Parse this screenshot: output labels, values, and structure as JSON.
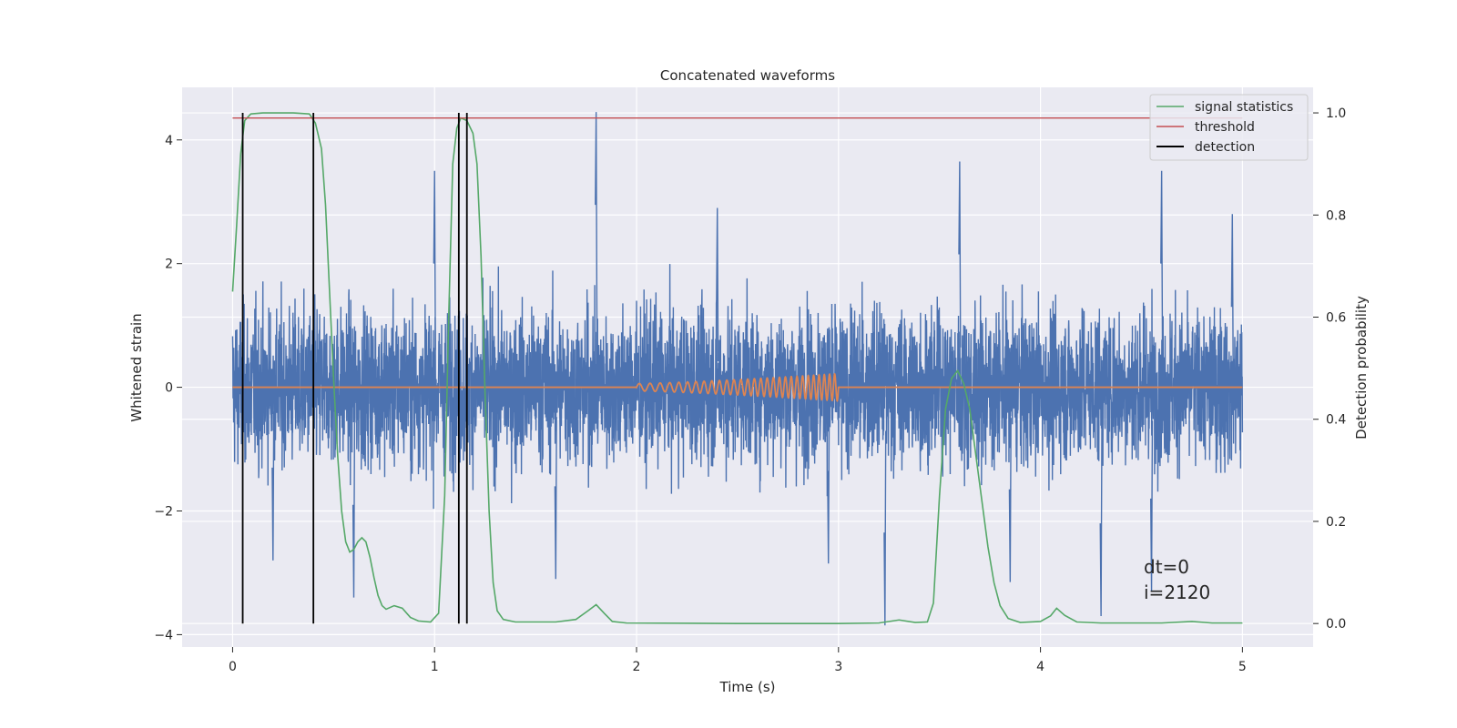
{
  "chart_data": {
    "type": "line",
    "title": "Concatenated waveforms",
    "xlabel": "Time (s)",
    "ylabel": "Whitened strain",
    "ylabel_right": "Detection probability",
    "xlim": [
      -0.25,
      5.35
    ],
    "ylim": [
      -4.2,
      4.85
    ],
    "ylim_right": [
      -0.046,
      1.05
    ],
    "x_ticks": [
      0,
      1,
      2,
      3,
      4,
      5
    ],
    "x_tick_labels": [
      "0",
      "1",
      "2",
      "3",
      "4",
      "5"
    ],
    "y_ticks": [
      -4,
      -2,
      0,
      2,
      4
    ],
    "y_tick_labels": [
      "−4",
      "−2",
      "0",
      "2",
      "4"
    ],
    "y_right_ticks": [
      0.0,
      0.2,
      0.4,
      0.6,
      0.8,
      1.0
    ],
    "y_right_tick_labels": [
      "0.0",
      "0.2",
      "0.4",
      "0.6",
      "0.8",
      "1.0"
    ],
    "grid": true,
    "legend_position": "top-right",
    "legend": [
      {
        "name": "signal statistics",
        "color": "#55a868"
      },
      {
        "name": "threshold",
        "color": "#c44e52"
      },
      {
        "name": "detection",
        "color": "#000000"
      }
    ],
    "noise": {
      "color": "#4c72b0",
      "x_range": [
        0,
        5
      ],
      "typical_range": [
        -2.3,
        2.3
      ],
      "peaks": [
        {
          "x": 1.8,
          "y": 4.45
        },
        {
          "x": 3.6,
          "y": 3.65
        },
        {
          "x": 1.0,
          "y": 3.5
        },
        {
          "x": 4.6,
          "y": 3.5
        },
        {
          "x": 3.23,
          "y": -3.85
        },
        {
          "x": 4.3,
          "y": -3.7
        },
        {
          "x": 0.6,
          "y": -3.4
        },
        {
          "x": 4.55,
          "y": -3.3
        },
        {
          "x": 0.2,
          "y": -2.8
        },
        {
          "x": 1.6,
          "y": -3.1
        },
        {
          "x": 2.95,
          "y": -2.85
        },
        {
          "x": 3.85,
          "y": -3.15
        },
        {
          "x": 2.4,
          "y": 2.9
        },
        {
          "x": 4.95,
          "y": 2.8
        }
      ]
    },
    "injected_signal": {
      "color": "#dd8452",
      "x_start": 2.0,
      "x_end": 3.0,
      "f_start_hz": 18,
      "f_end_hz": 40,
      "amp_start": 0.06,
      "amp_end": 0.22
    },
    "signal_statistics": {
      "color": "#55a868",
      "axis": "right",
      "points": [
        [
          0.0,
          0.65
        ],
        [
          0.02,
          0.78
        ],
        [
          0.04,
          0.92
        ],
        [
          0.06,
          0.985
        ],
        [
          0.09,
          0.998
        ],
        [
          0.15,
          1.0
        ],
        [
          0.3,
          1.0
        ],
        [
          0.38,
          0.998
        ],
        [
          0.41,
          0.98
        ],
        [
          0.44,
          0.93
        ],
        [
          0.46,
          0.82
        ],
        [
          0.48,
          0.65
        ],
        [
          0.5,
          0.48
        ],
        [
          0.52,
          0.33
        ],
        [
          0.54,
          0.22
        ],
        [
          0.56,
          0.16
        ],
        [
          0.58,
          0.14
        ],
        [
          0.6,
          0.145
        ],
        [
          0.62,
          0.16
        ],
        [
          0.64,
          0.168
        ],
        [
          0.66,
          0.16
        ],
        [
          0.68,
          0.13
        ],
        [
          0.7,
          0.09
        ],
        [
          0.72,
          0.055
        ],
        [
          0.74,
          0.035
        ],
        [
          0.76,
          0.028
        ],
        [
          0.8,
          0.035
        ],
        [
          0.84,
          0.03
        ],
        [
          0.88,
          0.012
        ],
        [
          0.92,
          0.005
        ],
        [
          0.98,
          0.003
        ],
        [
          1.02,
          0.02
        ],
        [
          1.05,
          0.25
        ],
        [
          1.07,
          0.6
        ],
        [
          1.09,
          0.9
        ],
        [
          1.11,
          0.97
        ],
        [
          1.13,
          0.99
        ],
        [
          1.16,
          0.985
        ],
        [
          1.19,
          0.96
        ],
        [
          1.21,
          0.9
        ],
        [
          1.23,
          0.72
        ],
        [
          1.25,
          0.45
        ],
        [
          1.27,
          0.22
        ],
        [
          1.29,
          0.08
        ],
        [
          1.31,
          0.025
        ],
        [
          1.34,
          0.008
        ],
        [
          1.4,
          0.003
        ],
        [
          1.6,
          0.003
        ],
        [
          1.7,
          0.008
        ],
        [
          1.76,
          0.025
        ],
        [
          1.8,
          0.037
        ],
        [
          1.84,
          0.02
        ],
        [
          1.88,
          0.004
        ],
        [
          1.95,
          0.001
        ],
        [
          2.5,
          0.0
        ],
        [
          3.0,
          0.0
        ],
        [
          3.2,
          0.001
        ],
        [
          3.3,
          0.007
        ],
        [
          3.38,
          0.002
        ],
        [
          3.44,
          0.003
        ],
        [
          3.47,
          0.04
        ],
        [
          3.5,
          0.25
        ],
        [
          3.53,
          0.42
        ],
        [
          3.56,
          0.48
        ],
        [
          3.59,
          0.495
        ],
        [
          3.62,
          0.47
        ],
        [
          3.65,
          0.42
        ],
        [
          3.68,
          0.33
        ],
        [
          3.71,
          0.24
        ],
        [
          3.74,
          0.15
        ],
        [
          3.77,
          0.08
        ],
        [
          3.8,
          0.035
        ],
        [
          3.84,
          0.01
        ],
        [
          3.9,
          0.002
        ],
        [
          4.0,
          0.004
        ],
        [
          4.05,
          0.015
        ],
        [
          4.08,
          0.03
        ],
        [
          4.12,
          0.016
        ],
        [
          4.18,
          0.003
        ],
        [
          4.3,
          0.001
        ],
        [
          4.6,
          0.001
        ],
        [
          4.75,
          0.004
        ],
        [
          4.85,
          0.001
        ],
        [
          5.0,
          0.001
        ]
      ]
    },
    "threshold": {
      "color": "#c44e52",
      "value": 0.99,
      "x_range": [
        0,
        5
      ],
      "axis": "right"
    },
    "detections": {
      "color": "#000000",
      "x": [
        0.05,
        0.4,
        1.12,
        1.16
      ],
      "y_range": [
        0,
        1.0
      ],
      "axis": "right"
    },
    "annotation": {
      "lines": [
        "dt=0",
        "i=2120"
      ],
      "x": 4.5,
      "y": -3.25
    }
  }
}
